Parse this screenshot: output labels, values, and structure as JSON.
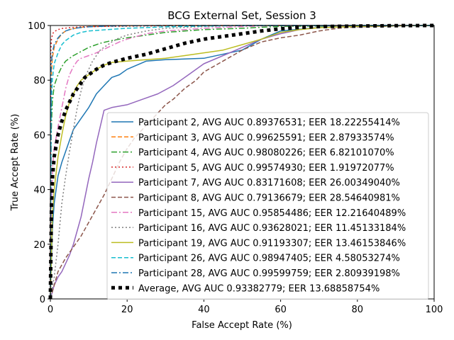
{
  "chart_data": {
    "type": "line",
    "title": "BCG External Set, Session 3",
    "xlabel": "False Accept Rate (%)",
    "ylabel": "True Accept Rate (%)",
    "xlim": [
      0,
      100
    ],
    "ylim": [
      0,
      100
    ],
    "xticks": [
      0,
      20,
      40,
      60,
      80,
      100
    ],
    "yticks": [
      0,
      20,
      40,
      60,
      80,
      100
    ],
    "grid": false,
    "legend_position": "lower-right",
    "series": [
      {
        "name": "Participant 2, AVG AUC 0.89376531; EER 18.22255414%",
        "color": "#1f77b4",
        "dash": "solid",
        "x": [
          0,
          0.5,
          1,
          2,
          3,
          4,
          5,
          6,
          8,
          10,
          12,
          14,
          16,
          18,
          20,
          25,
          30,
          40,
          50,
          55,
          60,
          70,
          80,
          90,
          100
        ],
        "y": [
          0,
          25,
          35,
          45,
          50,
          54,
          58,
          62,
          66,
          70,
          75,
          78,
          81,
          82,
          84,
          87,
          87.5,
          88,
          91,
          95,
          98,
          99.3,
          99.7,
          99.9,
          100
        ]
      },
      {
        "name": "Participant 3, AVG AUC 0.99625591; EER 2.87933574%",
        "color": "#ff7f0e",
        "dash": "dashed",
        "x": [
          0,
          0.2,
          0.5,
          1,
          2,
          3,
          4,
          5,
          7,
          10,
          15,
          20,
          30,
          50,
          100
        ],
        "y": [
          0,
          80,
          88,
          92,
          95,
          97,
          98,
          98.5,
          99.2,
          99.6,
          99.8,
          99.9,
          100,
          100,
          100
        ]
      },
      {
        "name": "Participant 4, AVG AUC 0.98080226; EER 6.82101070%",
        "color": "#2ca02c",
        "dash": "dashdot",
        "x": [
          0,
          0.2,
          0.5,
          1,
          2,
          3,
          4,
          6,
          8,
          10,
          13,
          16,
          20,
          25,
          30,
          40,
          50,
          60,
          100
        ],
        "y": [
          0,
          60,
          72,
          78,
          82,
          85,
          87,
          89,
          90.5,
          92,
          93.5,
          94.5,
          95.5,
          96.5,
          97.5,
          98.5,
          99,
          99.7,
          100
        ]
      },
      {
        "name": "Participant 5, AVG AUC 0.99574930; EER 1.91972077%",
        "color": "#d62728",
        "dash": "dotted",
        "x": [
          0,
          0.1,
          0.3,
          0.6,
          1,
          2,
          3,
          5,
          8,
          15,
          30,
          50,
          100
        ],
        "y": [
          0,
          90,
          95,
          97,
          97.8,
          98.5,
          98.9,
          99.2,
          99.5,
          99.7,
          99.9,
          100,
          100
        ]
      },
      {
        "name": "Participant 7, AVG AUC 0.83171608; EER 26.00349040%",
        "color": "#9467bd",
        "dash": "solid",
        "x": [
          0,
          1,
          2,
          3,
          4,
          5,
          6,
          7,
          8,
          9,
          10,
          11,
          12,
          13,
          14,
          16,
          20,
          24,
          28,
          32,
          36,
          40,
          45,
          50,
          55,
          60,
          65,
          70,
          80,
          90,
          100
        ],
        "y": [
          0,
          5,
          8,
          10,
          13,
          16,
          20,
          25,
          30,
          37,
          44,
          50,
          57,
          63,
          69,
          70,
          71,
          73,
          75,
          78,
          82,
          86,
          89,
          92,
          95,
          97,
          98.5,
          99.3,
          99.7,
          99.9,
          100
        ]
      },
      {
        "name": "Participant 8, AVG AUC 0.79136679; EER 28.54640981%",
        "color": "#8c564b",
        "dash": "dashed",
        "x": [
          0,
          2,
          4,
          6,
          8,
          10,
          12,
          14,
          16,
          18,
          20,
          22,
          24,
          26,
          28,
          30,
          32,
          35,
          38,
          40,
          45,
          50,
          55,
          60,
          65,
          70,
          75,
          80,
          90,
          100
        ],
        "y": [
          0,
          10,
          15,
          19,
          23,
          28,
          33,
          38,
          44,
          50,
          55,
          59,
          62,
          65,
          68,
          71,
          73,
          77,
          80,
          83,
          87,
          91,
          94,
          95.5,
          96.5,
          98,
          99,
          99.5,
          99.8,
          100
        ]
      },
      {
        "name": "Participant 15, AVG AUC 0.95854486; EER 12.21640489%",
        "color": "#e377c2",
        "dash": "dashdot",
        "x": [
          0,
          0.3,
          0.6,
          1,
          2,
          3,
          4,
          5,
          6,
          7,
          8,
          10,
          12,
          15,
          18,
          20,
          25,
          30,
          40,
          50,
          60,
          100
        ],
        "y": [
          0,
          35,
          48,
          55,
          63,
          70,
          77,
          82,
          85,
          87,
          88,
          89,
          90,
          92,
          94,
          95,
          97,
          98,
          99,
          99.6,
          100,
          100
        ]
      },
      {
        "name": "Participant 16, AVG AUC 0.93628021; EER 11.45133184%",
        "color": "#7f7f7f",
        "dash": "dotted",
        "x": [
          0,
          1,
          2,
          3,
          4,
          5,
          6,
          7,
          8,
          9,
          10,
          11,
          12,
          13,
          14,
          15,
          16,
          18,
          20,
          25,
          30,
          40,
          50,
          100
        ],
        "y": [
          0,
          8,
          20,
          35,
          45,
          54,
          62,
          70,
          76,
          81,
          84,
          87,
          89,
          91,
          92,
          93,
          94,
          95.5,
          96.5,
          98,
          99,
          99.6,
          100,
          100
        ]
      },
      {
        "name": "Participant 19, AVG AUC 0.91193307; EER 13.46153846%",
        "color": "#bcbd22",
        "dash": "solid",
        "x": [
          0,
          0.5,
          1,
          2,
          3,
          4,
          5,
          6,
          7,
          8,
          9,
          10,
          11,
          12,
          14,
          16,
          20,
          25,
          30,
          35,
          40,
          45,
          50,
          55,
          60,
          65,
          70,
          80,
          90,
          100
        ],
        "y": [
          0,
          30,
          40,
          52,
          60,
          67,
          72,
          75,
          78,
          80,
          81,
          82,
          83,
          84,
          85.5,
          86.5,
          87,
          87.5,
          88,
          89,
          90,
          91,
          93,
          95,
          97.5,
          98.5,
          99.2,
          99.7,
          99.9,
          100
        ]
      },
      {
        "name": "Participant 26, AVG AUC 0.98947405; EER 4.58053274%",
        "color": "#17becf",
        "dash": "dashed",
        "x": [
          0,
          0.2,
          0.5,
          1,
          2,
          3,
          4,
          5,
          6,
          8,
          10,
          15,
          20,
          30,
          40,
          50,
          100
        ],
        "y": [
          0,
          70,
          80,
          86,
          90,
          93,
          94.5,
          95.5,
          96.5,
          97.5,
          98,
          98.5,
          99,
          99.5,
          99.8,
          100,
          100
        ]
      },
      {
        "name": "Participant 28, AVG AUC 0.99599759; EER 2.80939198%",
        "color": "#1f77b4",
        "dash": "dashdot",
        "x": [
          0,
          0.2,
          0.5,
          1,
          2,
          3,
          4,
          5,
          7,
          10,
          15,
          20,
          30,
          50,
          100
        ],
        "y": [
          0,
          85,
          90,
          93,
          95.5,
          97,
          98,
          98.5,
          99.1,
          99.5,
          99.8,
          99.9,
          100,
          100,
          100
        ]
      },
      {
        "name": "Average, AVG AUC 0.93382779; EER 13.68858754%",
        "color": "#000000",
        "dash": "dotted-thick",
        "x": [
          0,
          0.3,
          0.6,
          1,
          1.5,
          2,
          3,
          4,
          5,
          6,
          7,
          8,
          9,
          10,
          12,
          14,
          16,
          20,
          25,
          30,
          35,
          40,
          45,
          50,
          55,
          60,
          65,
          70,
          80,
          90,
          100
        ],
        "y": [
          0,
          35,
          45,
          52,
          56,
          60,
          65,
          69,
          72,
          75,
          77,
          79,
          81,
          82,
          84,
          85.5,
          86.5,
          88,
          89.5,
          91.5,
          93.5,
          95,
          96,
          97,
          98,
          98.8,
          99.3,
          99.6,
          99.8,
          99.95,
          100
        ]
      }
    ]
  }
}
